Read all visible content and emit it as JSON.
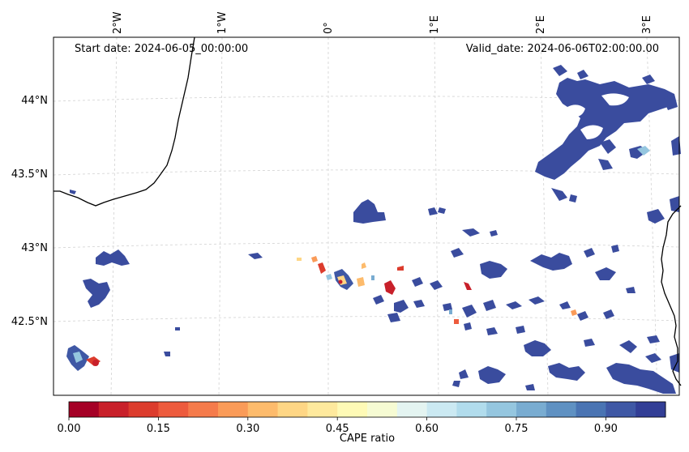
{
  "header": {
    "start_date": "Start date: 2024-06-05_00:00:00",
    "valid_date": "Valid_date: 2024-06-06T02:00:00.00"
  },
  "longitude_labels": [
    "2°W",
    "1°W",
    "0°",
    "1°E",
    "2°E",
    "3°E"
  ],
  "latitude_labels": [
    "44°N",
    "43.5°N",
    "43°N",
    "42.5°N"
  ],
  "colorbar": {
    "label": "CAPE ratio",
    "ticks": [
      "0.00",
      "0.15",
      "0.30",
      "0.45",
      "0.60",
      "0.75",
      "0.90"
    ],
    "min": 0.0,
    "max": 1.0,
    "colormap": "RdYlBu",
    "levels": 20,
    "colors": [
      "#a50026",
      "#c8202a",
      "#dc3c2d",
      "#ed5b3d",
      "#f57b4b",
      "#fa9b58",
      "#fdbb6c",
      "#fed685",
      "#fee99d",
      "#fefab6",
      "#f6fbd3",
      "#e4f4f1",
      "#cbe9f2",
      "#b1dcec",
      "#95c6df",
      "#79acd1",
      "#5f91c2",
      "#4a74b3",
      "#3f58a5",
      "#323e96"
    ]
  },
  "map_colors": {
    "high_ratio_fill": "#3a4c9e",
    "coastline": "#000000",
    "gridline": "#cfcfcf"
  }
}
